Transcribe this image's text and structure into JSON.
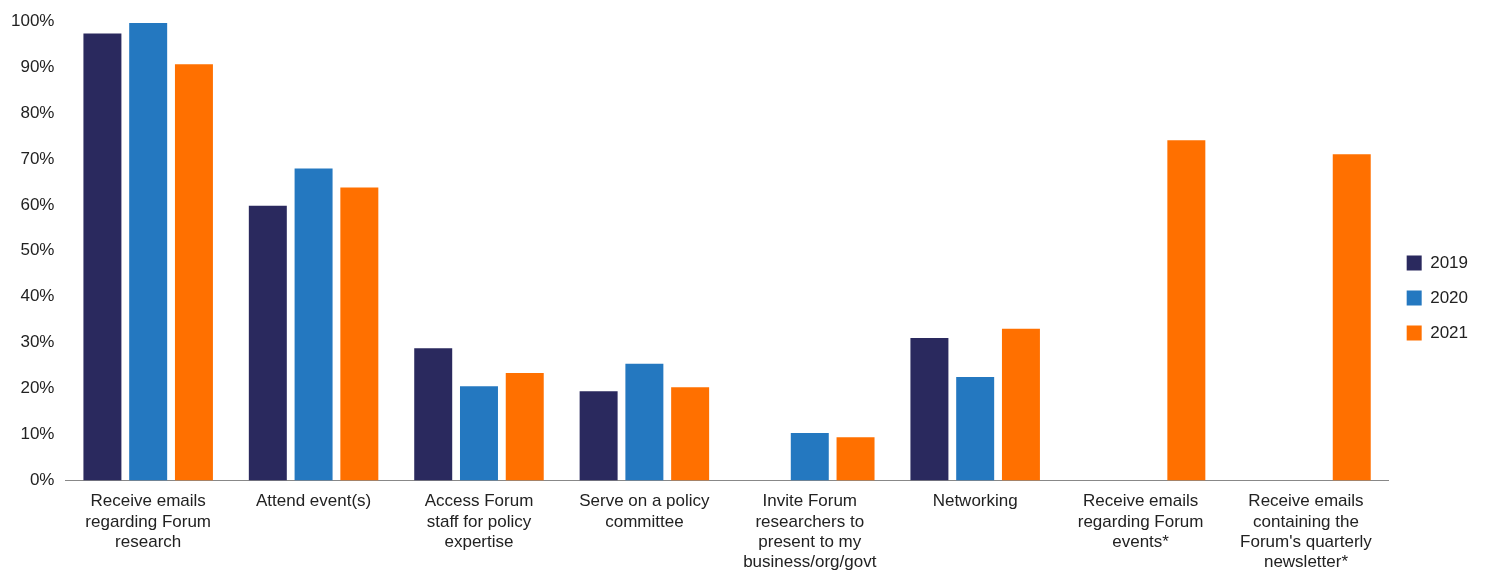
{
  "chart_data": {
    "type": "bar",
    "categories": [
      "Receive emails regarding Forum research",
      "Attend event(s)",
      "Access Forum staff for policy expertise",
      "Serve on a policy committee",
      "Invite Forum researchers to present to my business/org/govt",
      "Networking",
      "Receive emails regarding Forum events*",
      "Receive emails containing the Forum's quarterly newsletter*"
    ],
    "series": [
      {
        "name": "2019",
        "color": "#2a295e",
        "values": [
          97.3,
          59.8,
          28.8,
          19.4,
          null,
          31,
          null,
          null
        ]
      },
      {
        "name": "2020",
        "color": "#2478c0",
        "values": [
          99.6,
          67.9,
          20.5,
          25.4,
          10.3,
          22.5,
          null,
          null
        ]
      },
      {
        "name": "2021",
        "color": "#ff7000",
        "values": [
          90.6,
          63.8,
          23.4,
          20.3,
          9.4,
          33,
          74.1,
          71
        ]
      }
    ],
    "ylim": [
      0,
      100
    ],
    "yticks": [
      {
        "value": 0,
        "label": "0%"
      },
      {
        "value": 10,
        "label": "10%"
      },
      {
        "value": 20,
        "label": "20%"
      },
      {
        "value": 30,
        "label": "30%"
      },
      {
        "value": 40,
        "label": "40%"
      },
      {
        "value": 50,
        "label": "50%"
      },
      {
        "value": 60,
        "label": "60%"
      },
      {
        "value": 70,
        "label": "70%"
      },
      {
        "value": 80,
        "label": "80%"
      },
      {
        "value": 90,
        "label": "90%"
      },
      {
        "value": 100,
        "label": "100%"
      }
    ],
    "grid": false,
    "legend": "right"
  }
}
